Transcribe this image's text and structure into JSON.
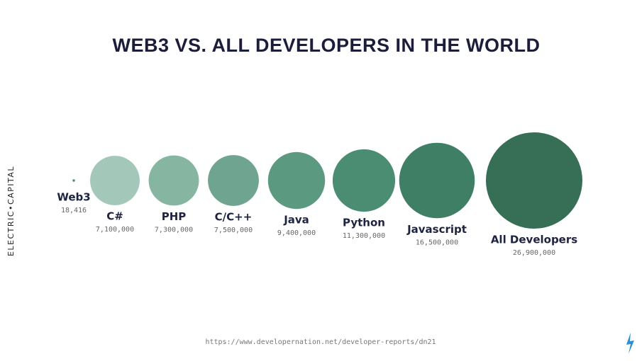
{
  "chart_data": {
    "type": "bubble",
    "title": "WEB3 VS. ALL DEVELOPERS IN THE WORLD",
    "categories": [
      "Web3",
      "C#",
      "PHP",
      "C/C++",
      "Java",
      "Python",
      "Javascript",
      "All Developers"
    ],
    "values": [
      18416,
      7100000,
      7300000,
      7500000,
      9400000,
      11300000,
      16500000,
      26900000
    ],
    "value_labels": [
      "18,416",
      "7,100,000",
      "7,300,000",
      "7,500,000",
      "9,400,000",
      "11,300,000",
      "16,500,000",
      "26,900,000"
    ],
    "colors": [
      "#4f8f74",
      "#a3c7b8",
      "#86b5a1",
      "#6fa590",
      "#5b9a80",
      "#4b8d72",
      "#3f7f66",
      "#366e56"
    ],
    "source": "https://www.developernation.net/developer-reports/dn21",
    "brand": "ELECTRIC•CAPITAL"
  }
}
